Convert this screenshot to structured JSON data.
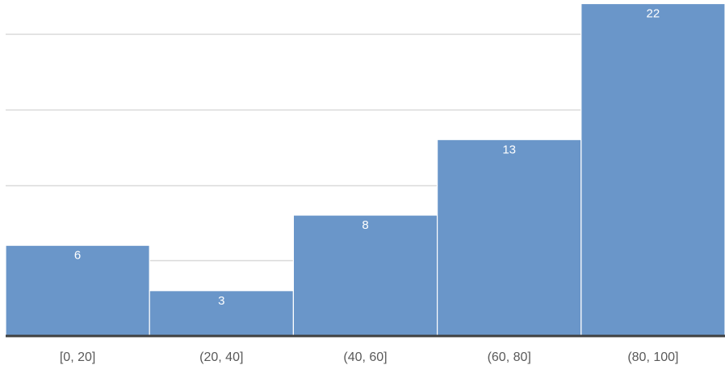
{
  "chart_data": {
    "type": "bar",
    "title": "",
    "xlabel": "",
    "ylabel": "",
    "categories": [
      "[0, 20]",
      "(20, 40]",
      "(40, 60]",
      "(60, 80]",
      "(80, 100]"
    ],
    "values": [
      6,
      3,
      8,
      13,
      22
    ],
    "data_labels": [
      "6",
      "3",
      "8",
      "13",
      "22"
    ],
    "ylim": [
      0,
      22
    ],
    "gridline_values": [
      5,
      10,
      15,
      20
    ],
    "grid": true,
    "legend": "none",
    "colors": {
      "bar": "#6794C8",
      "bar_edge": "#ffffff",
      "gridline": "#D9D9D9",
      "axis": "#404040",
      "tick_text": "#595959",
      "data_label_text": "#ffffff"
    }
  }
}
